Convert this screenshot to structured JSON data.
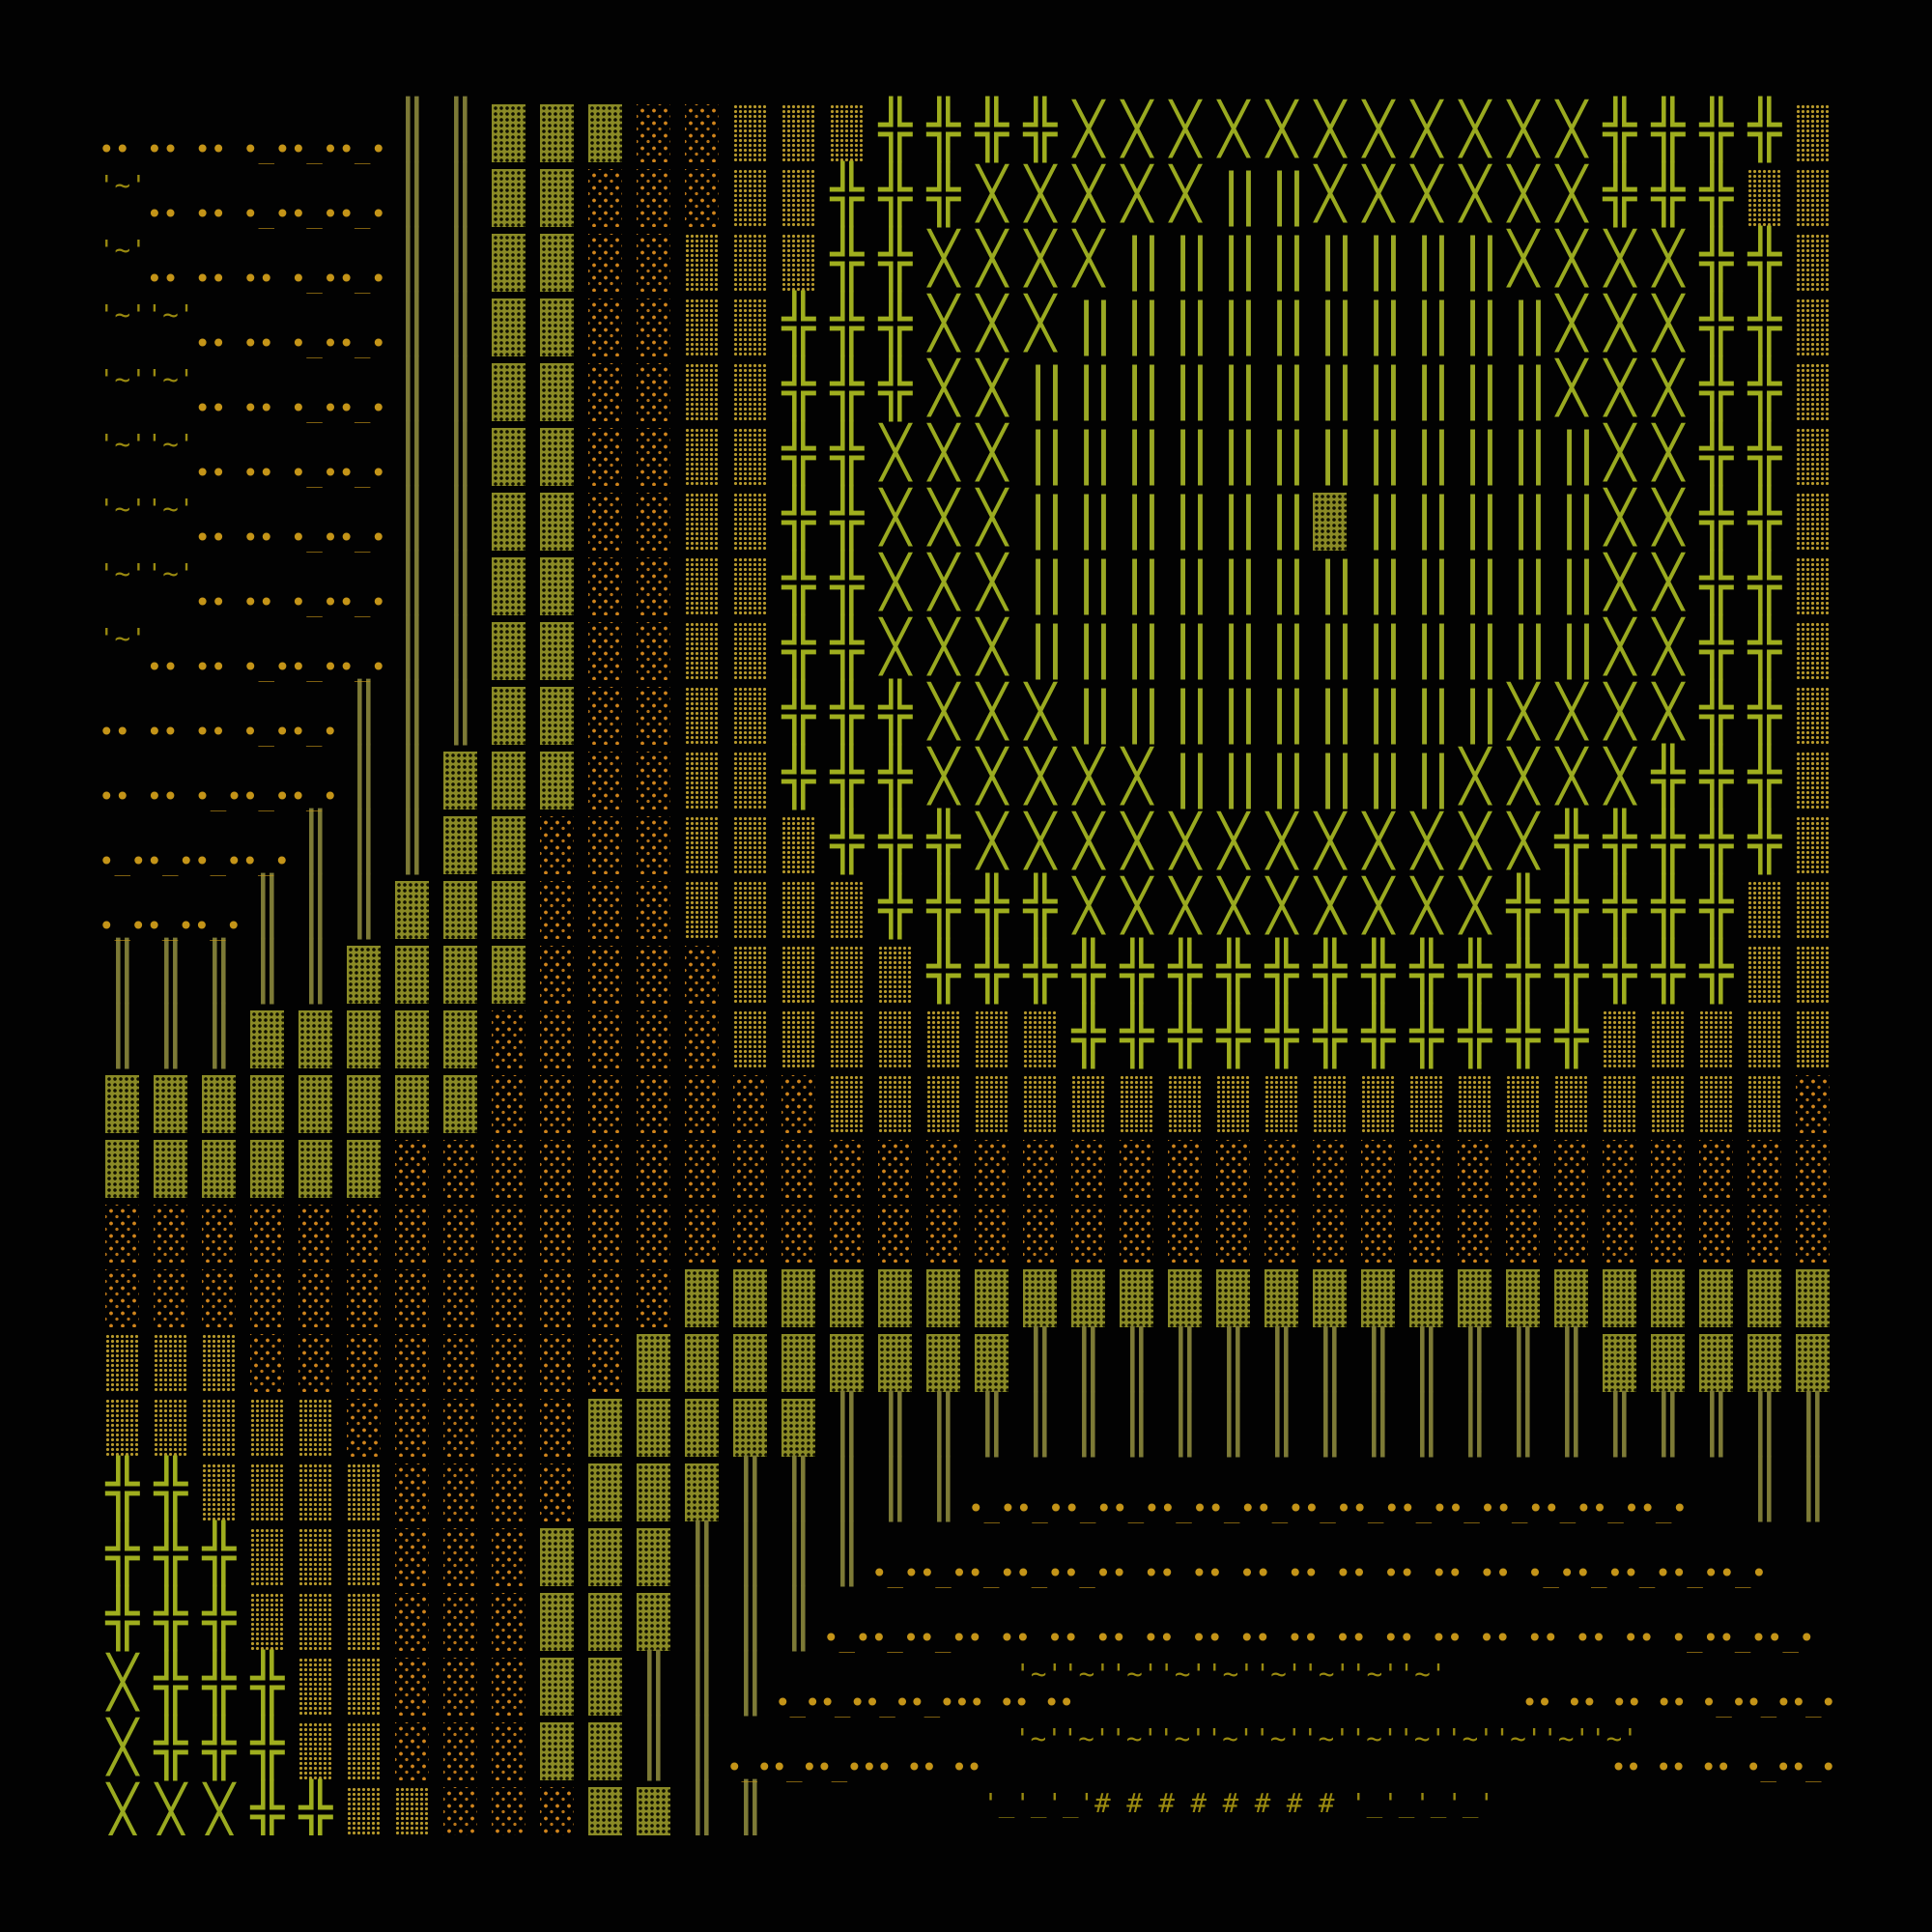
{
  "colors": {
    "background": "#020202",
    "dense": "#8a8a26",
    "sparse": "#d0841c",
    "medium": "#b89a2c",
    "cross": "#9fae1e",
    "bars": "#9aa824",
    "pipes": "#7d7a36",
    "text": "#c49418"
  },
  "glyphs": {
    "H": "╬",
    "X": "╳",
    "P": "║",
    "B": "| |"
  },
  "legend_codes": {
    "D": "dense-shade",
    "S": "light-shade",
    "M": "medium-shade",
    "H": "double-cross",
    "X": "diagonal-cross",
    "P": "double-pipe",
    "B": "bar-pair",
    "t": "ascii-text"
  },
  "rows": [
    "ttttttPPDDDSSMMMHHHHXXXXXXXXXXXHHHHM",
    "ttttttPPDDSSSMMHHHXXXXXBBXXXXXXHHHMM",
    "ttttttPPDDSSMMMHHXXXXBBBBBBBBXXXXHHM",
    "ttttttPPDDSSMMHHHXXXBBBBBBBBBBXXXHHM",
    "ttttttPPDDSSMMHHHXXBBBBBBBBBBBXXXHHM",
    "ttttttPPDDSSMMHHXXXBBBBBBBBBBBBXXHHM",
    "ttttttPPDDSSMMHHXXXBBBBBBDBBBBBXXHHM",
    "ttttttPPDDSSMMHHXXXBBBBBBBBBBBBXXHHM",
    "ttttttPPDDSSMMHHXXXBBBBBBBBBBBBXXHHM",
    "tttttPPPDDSSMMHHHXXXBBBBBBBBBXXXXHHM",
    "tttttPPDDDSSMMHHHXXXXXBBBBBBXXXXHHHM",
    "ttttPPPDDSSSMMMHHHXXXXXXXXXXXXHHHHHM",
    "tttPPPDDDSSSMMMMHHHHXXXXXXXXXHHHHHMM",
    "PPPPPDDDDSSSSMMMMHHHHHHHHHHHHHHHHHMM",
    "PPPDDDDDSSSSSMMMMMMMHHHHHHHHHHHMMMMM",
    "DDDDDDDDSSSSSSSMMMMMMMMMMMMMMMMMMMMS",
    "DDDDDDSSSSSSSSSSSSSSSSSSSSSSSSSSSSSS",
    "SSSSSSSSSSSSSSSSSSSSSSSSSSSSSSSSSSSS",
    "SSSSSSSSSSSSDDDDDDDDDDDDDDDDDDDDDDDD",
    "MMMSSSSSSSSDDDDDDDDPPPPPPPPPPPPDDDDD",
    "MMMMMSSSSSDDDDDPPPPPPPPPPPPPPPPPPPPP",
    "HHMMMMSSSSDDDPPPPPttttttttttttttttPPP",
    "HHHMMMSSSDDDPPPPttttttttttttttttttttP",
    "HHHMMMSSSDDDPPPttttttttttttttttttttt",
    "XHHHMMSSSDDPPPtttttttttttttttttttttt",
    "XHHHMMSSSDDPPttttttttttttttttttttttt",
    "XXXHHMMSSSDDPPtttttttttttttttttttttt"
  ],
  "text_rows": [
    {
      "row": 0,
      "col": 0,
      "upper": "",
      "lower": "•• •• •• •_••_••_•"
    },
    {
      "row": 1,
      "col": 0,
      "upper": "'~'",
      "lower": "   •• •• •_••_••_•"
    },
    {
      "row": 2,
      "col": 0,
      "upper": "'~'",
      "lower": "   •• •• •• •_••_•"
    },
    {
      "row": 3,
      "col": 0,
      "upper": "'~''~'",
      "lower": "      •• •• •_••_•"
    },
    {
      "row": 4,
      "col": 0,
      "upper": "'~''~'",
      "lower": "      •• •• •_••_•"
    },
    {
      "row": 5,
      "col": 0,
      "upper": "'~''~'",
      "lower": "      •• •• •_••_•"
    },
    {
      "row": 6,
      "col": 0,
      "upper": "'~''~'",
      "lower": "      •• •• •_••_•"
    },
    {
      "row": 7,
      "col": 0,
      "upper": "'~''~'",
      "lower": "      •• •• •_••_•"
    },
    {
      "row": 8,
      "col": 0,
      "upper": "'~'",
      "lower": "   •• •• •_••_••_•"
    },
    {
      "row": 9,
      "col": 0,
      "upper": "",
      "lower": "•• •• •• •_••_•"
    },
    {
      "row": 10,
      "col": 0,
      "upper": "",
      "lower": "•• •• •_••_••_•"
    },
    {
      "row": 11,
      "col": 0,
      "upper": "",
      "lower": "•_••_••_••_•"
    },
    {
      "row": 12,
      "col": 0,
      "upper": "",
      "lower": "•_••_••_•"
    },
    {
      "row": 21,
      "col": 18,
      "upper": "",
      "lower": "•_••_••_••_••_••_••_••_••_••_••_••_••_••_••_•"
    },
    {
      "row": 22,
      "col": 16,
      "upper": "",
      "lower": "•_••_••_••_••_•• •• •• •• •• •• •• •• •• •_••_••_••_••_•"
    },
    {
      "row": 23,
      "col": 15,
      "upper": "",
      "lower": "•_••_••_•• •• •• •• •• •• •• •• •• •• •• •• •• •• •• •_••_••_•"
    },
    {
      "row": 24,
      "col": 14,
      "upper": "               '~''~''~''~''~''~''~''~''~'",
      "lower": "•_••_••_••_••• •• ••                              •• •• •• •• •_••_••_•"
    },
    {
      "row": 25,
      "col": 13,
      "upper": "                  '~''~''~''~''~''~''~''~''~''~''~''~''~'",
      "lower": "•_••_••_••• •• ••                                          •• •• •• •_••_•"
    },
    {
      "row": 26,
      "col": 14,
      "upper": "             '_'_'_'# # # # # # # # '_'_'_'_'",
      "lower": ""
    }
  ]
}
